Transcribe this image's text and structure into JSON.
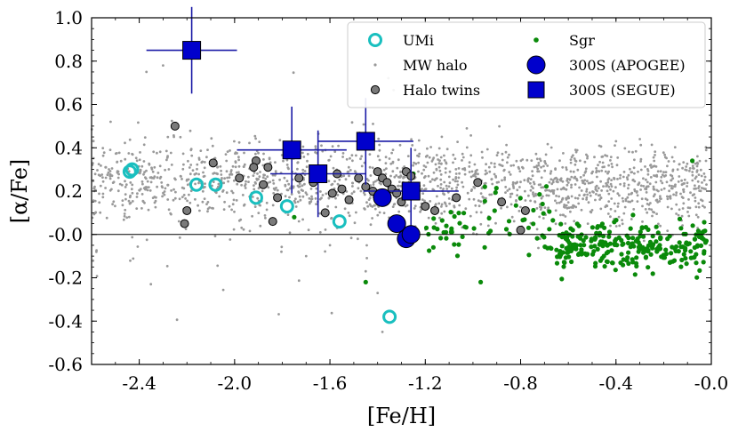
{
  "chart_data": {
    "type": "scatter",
    "xlabel": "[Fe/H]",
    "ylabel": "[α/Fe]",
    "xlim": [
      -2.6,
      0.0
    ],
    "ylim": [
      -0.6,
      1.0
    ],
    "x_ticks": [
      -2.4,
      -2.0,
      -1.6,
      -1.2,
      -0.8,
      -0.4,
      0.0
    ],
    "x_tick_labels": [
      "-2.4",
      "-2.0",
      "-1.6",
      "-1.2",
      "-0.8",
      "-0.4",
      "-0.0"
    ],
    "y_ticks": [
      -0.6,
      -0.4,
      -0.2,
      0.0,
      0.2,
      0.4,
      0.6,
      0.8,
      1.0
    ],
    "y_tick_labels": [
      "-0.6",
      "-0.4",
      "-0.2",
      "-0.0",
      "0.2",
      "0.4",
      "0.6",
      "0.8",
      "1.0"
    ],
    "reference_line_y": 0.0,
    "legend": {
      "placement": "top-right",
      "entries": [
        "UMi",
        "MW halo",
        "Halo twins",
        "Sgr",
        "300S (APOGEE)",
        "300S (SEGUE)"
      ]
    },
    "colors": {
      "umi": "#19bfbf",
      "mw_halo": "#999999",
      "halo_twins": "#7a7a7a",
      "sgr": "#0a8a0a",
      "s300": "#0000cc",
      "errorbar": "#1a1aa6"
    },
    "series": [
      {
        "name": "UMi",
        "marker": "open-circle",
        "points": [
          [
            -2.43,
            0.3
          ],
          [
            -2.44,
            0.29
          ],
          [
            -2.16,
            0.23
          ],
          [
            -2.08,
            0.23
          ],
          [
            -1.91,
            0.17
          ],
          [
            -1.78,
            0.13
          ],
          [
            -1.56,
            0.06
          ],
          [
            -1.35,
            -0.38
          ]
        ]
      },
      {
        "name": "Halo twins",
        "marker": "filled-circle",
        "points": [
          [
            -2.25,
            0.5
          ],
          [
            -2.2,
            0.11
          ],
          [
            -2.21,
            0.05
          ],
          [
            -2.09,
            0.33
          ],
          [
            -1.98,
            0.26
          ],
          [
            -1.91,
            0.34
          ],
          [
            -1.92,
            0.31
          ],
          [
            -1.86,
            0.31
          ],
          [
            -1.88,
            0.23
          ],
          [
            -1.84,
            0.06
          ],
          [
            -1.82,
            0.17
          ],
          [
            -1.73,
            0.26
          ],
          [
            -1.67,
            0.24
          ],
          [
            -1.62,
            0.1
          ],
          [
            -1.59,
            0.19
          ],
          [
            -1.57,
            0.28
          ],
          [
            -1.55,
            0.21
          ],
          [
            -1.52,
            0.16
          ],
          [
            -1.48,
            0.26
          ],
          [
            -1.45,
            0.22
          ],
          [
            -1.42,
            0.2
          ],
          [
            -1.4,
            0.29
          ],
          [
            -1.38,
            0.26
          ],
          [
            -1.36,
            0.24
          ],
          [
            -1.34,
            0.21
          ],
          [
            -1.32,
            0.19
          ],
          [
            -1.3,
            0.15
          ],
          [
            -1.28,
            0.29
          ],
          [
            -1.26,
            0.27
          ],
          [
            -1.24,
            0.22
          ],
          [
            -1.2,
            0.13
          ],
          [
            -1.16,
            0.11
          ],
          [
            -1.07,
            0.17
          ],
          [
            -0.98,
            0.24
          ],
          [
            -0.88,
            0.15
          ],
          [
            -0.8,
            0.02
          ],
          [
            -0.78,
            0.11
          ]
        ]
      },
      {
        "name": "300S (APOGEE)",
        "marker": "big-circle",
        "points": [
          [
            -1.38,
            0.17
          ],
          [
            -1.32,
            0.05
          ],
          [
            -1.28,
            -0.02
          ],
          [
            -1.26,
            0.0
          ]
        ]
      },
      {
        "name": "300S (SEGUE)",
        "marker": "square-errorbar",
        "points": [
          {
            "x": -2.18,
            "y": 0.85,
            "xerr": 0.19,
            "yerr": 0.2
          },
          {
            "x": -1.76,
            "y": 0.39,
            "xerr": 0.23,
            "yerr": 0.2
          },
          {
            "x": -1.65,
            "y": 0.28,
            "xerr": 0.2,
            "yerr": 0.2
          },
          {
            "x": -1.45,
            "y": 0.43,
            "xerr": 0.2,
            "yerr": 0.2
          },
          {
            "x": -1.26,
            "y": 0.2,
            "xerr": 0.2,
            "yerr": 0.2
          }
        ]
      }
    ],
    "generated_series": [
      {
        "name": "MW halo",
        "marker": "small-dot",
        "count": 1700,
        "components": [
          {
            "weight": 0.62,
            "x_range": [
              -2.6,
              -0.75
            ],
            "y_mean": 0.24,
            "y_sd": 0.09
          },
          {
            "weight": 0.33,
            "x_range": [
              -0.75,
              -0.02
            ],
            "y_mean": 0.22,
            "y_sd": 0.085
          },
          {
            "weight": 0.05,
            "x_range": [
              -2.6,
              -1.2
            ],
            "y_mean": 0.15,
            "y_sd": 0.22
          }
        ],
        "extra_points": [
          [
            -2.37,
            0.75
          ],
          [
            -2.3,
            0.78
          ],
          [
            -2.28,
            0.45
          ],
          [
            -2.52,
            0.52
          ],
          [
            -1.6,
            -0.05
          ],
          [
            -1.7,
            -0.1
          ],
          [
            -2.58,
            -0.08
          ],
          [
            -1.45,
            -0.17
          ],
          [
            -1.4,
            -0.27
          ],
          [
            -1.38,
            -0.45
          ],
          [
            -0.4,
            0.43
          ],
          [
            -0.3,
            0.44
          ]
        ]
      },
      {
        "name": "Sgr",
        "marker": "small-filled-circle",
        "count": 330,
        "components": [
          {
            "weight": 0.8,
            "x_range": [
              -0.65,
              -0.02
            ],
            "y_mean": -0.06,
            "y_sd": 0.06
          },
          {
            "weight": 0.2,
            "x_range": [
              -1.2,
              -0.65
            ],
            "y_mean": 0.02,
            "y_sd": 0.08
          }
        ],
        "extra_points": [
          [
            -1.45,
            -0.22
          ],
          [
            -0.08,
            0.34
          ],
          [
            -1.75,
            0.08
          ],
          [
            -1.25,
            0.28
          ],
          [
            -0.95,
            0.22
          ]
        ]
      }
    ]
  }
}
